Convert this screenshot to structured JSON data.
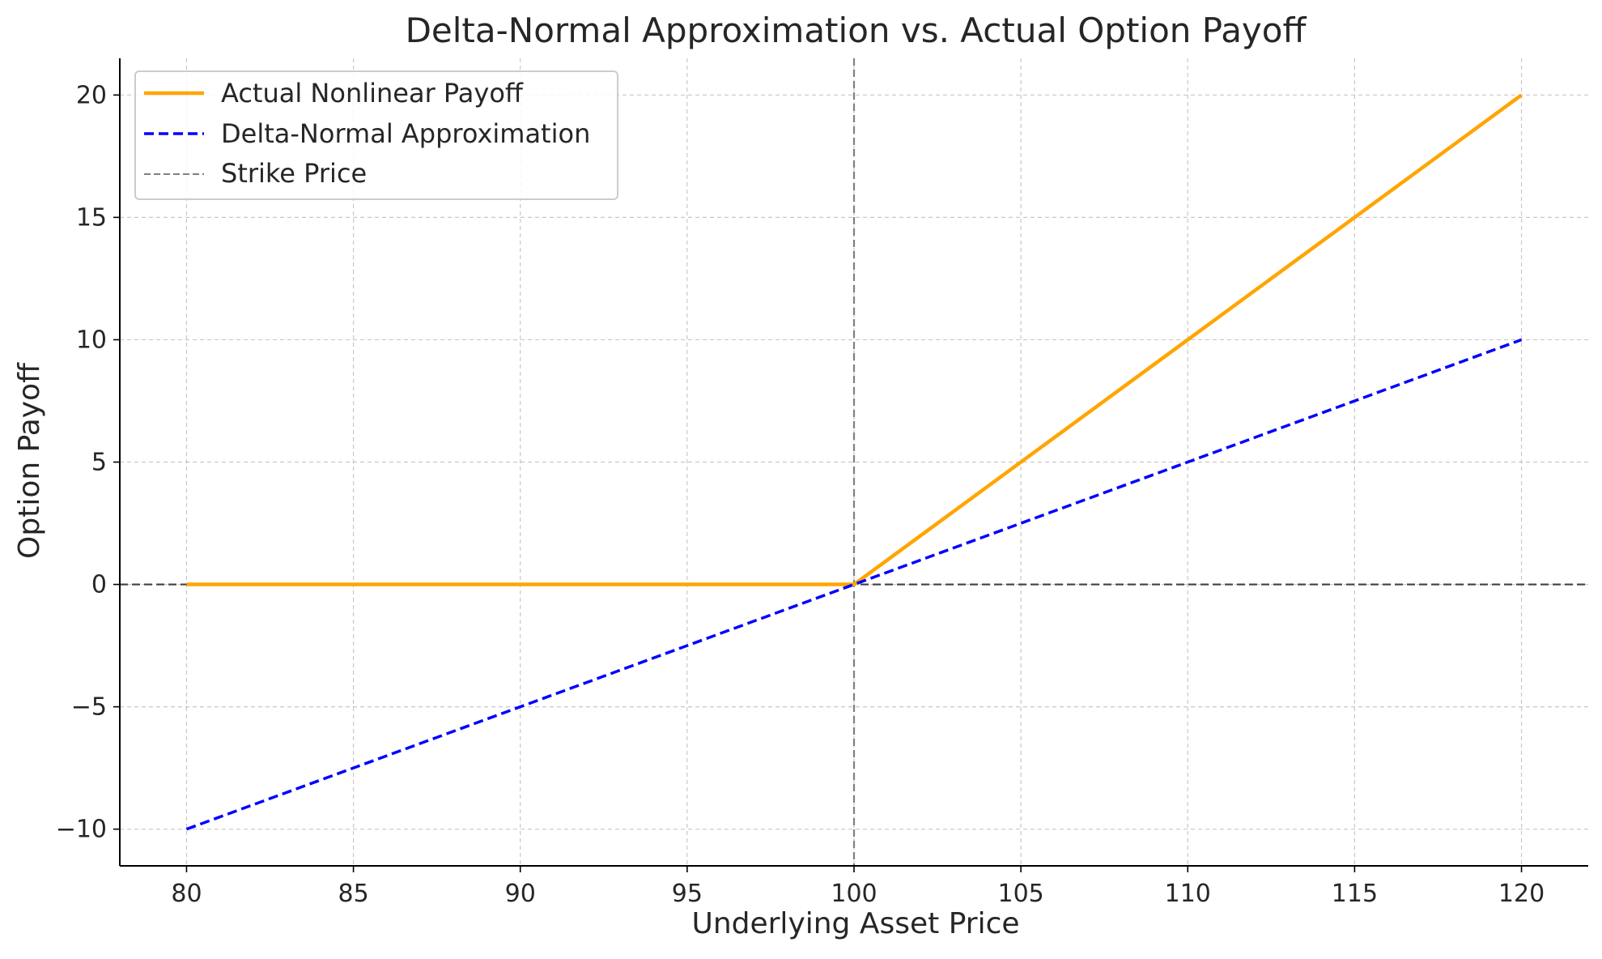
{
  "chart_data": {
    "type": "line",
    "title": "Delta-Normal Approximation vs. Actual Option Payoff",
    "xlabel": "Underlying Asset Price",
    "ylabel": "Option Payoff",
    "xlim": [
      78,
      122
    ],
    "ylim": [
      -11.5,
      21.5
    ],
    "xticks": [
      80,
      85,
      90,
      95,
      100,
      105,
      110,
      115,
      120
    ],
    "yticks": [
      -10,
      -5,
      0,
      5,
      10,
      15,
      20
    ],
    "xtick_labels": [
      "80",
      "85",
      "90",
      "95",
      "100",
      "105",
      "110",
      "115",
      "120"
    ],
    "ytick_labels": [
      "−10",
      "−5",
      "0",
      "5",
      "10",
      "15",
      "20"
    ],
    "grid": true,
    "legend_position": "top-left",
    "series": [
      {
        "name": "Actual Nonlinear Payoff",
        "style": "solid",
        "color": "#FFA500",
        "x": [
          80,
          100,
          120
        ],
        "y": [
          0,
          0,
          20
        ]
      },
      {
        "name": "Delta-Normal Approximation",
        "style": "dashed",
        "color": "#0000FF",
        "x": [
          80,
          100,
          120
        ],
        "y": [
          -10,
          0,
          10
        ]
      }
    ],
    "reference_lines": [
      {
        "name": "Strike Price",
        "orientation": "vertical",
        "value": 100,
        "color": "#808080",
        "style": "dashed"
      },
      {
        "name": "",
        "orientation": "horizontal",
        "value": 0,
        "color": "#404040",
        "style": "dashed"
      }
    ]
  }
}
